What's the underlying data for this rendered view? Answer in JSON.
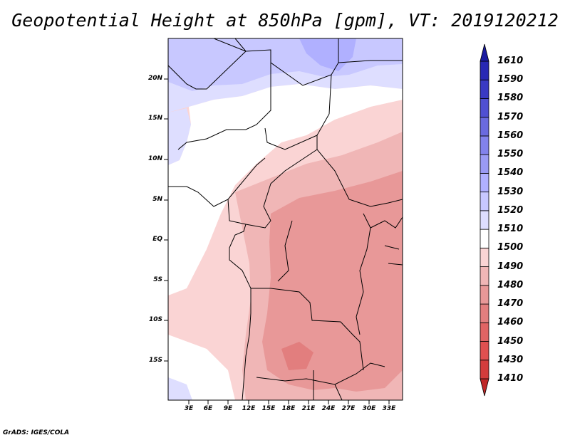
{
  "title": "Geopotential Height at 850hPa [gpm], VT: 2019120212",
  "credit": "GrADS: IGES/COLA",
  "map": {
    "lat_labels": [
      "20N",
      "15N",
      "10N",
      "5N",
      "EQ",
      "5S",
      "10S",
      "15S"
    ],
    "lon_labels": [
      "3E",
      "6E",
      "9E",
      "12E",
      "15E",
      "18E",
      "21E",
      "24E",
      "27E",
      "30E",
      "33E"
    ]
  },
  "colorbar": {
    "levels": [
      "1410",
      "1430",
      "1450",
      "1460",
      "1470",
      "1480",
      "1490",
      "1500",
      "1510",
      "1520",
      "1530",
      "1540",
      "1550",
      "1560",
      "1570",
      "1580",
      "1590",
      "1610"
    ],
    "colors": [
      "#c02828",
      "#d43c3c",
      "#e05050",
      "#e06464",
      "#e27e7e",
      "#e89898",
      "#f0b6b6",
      "#fad4d4",
      "#ffffff",
      "#dedeff",
      "#c8c8ff",
      "#b0b0ff",
      "#9a9af4",
      "#8282ec",
      "#6a6adf",
      "#5050d2",
      "#3a3ac4",
      "#2828b4",
      "#1a1aa0"
    ]
  }
}
